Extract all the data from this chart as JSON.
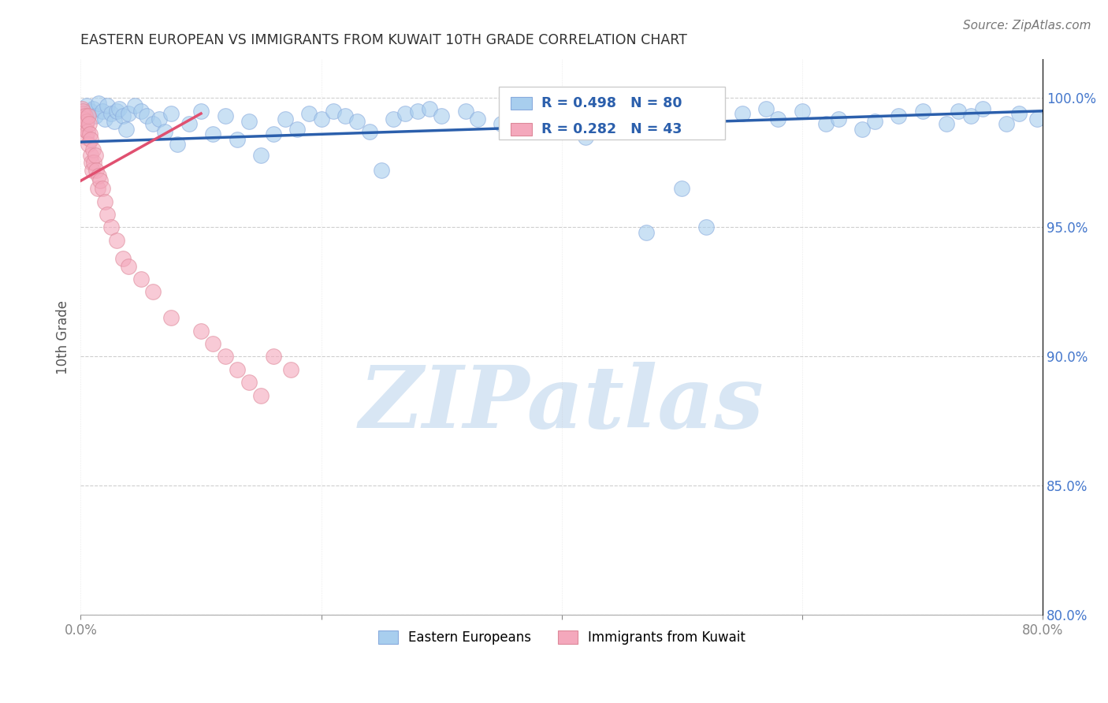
{
  "title": "EASTERN EUROPEAN VS IMMIGRANTS FROM KUWAIT 10TH GRADE CORRELATION CHART",
  "source": "Source: ZipAtlas.com",
  "xlabel": "",
  "ylabel": "10th Grade",
  "watermark_text": "ZIPatlas",
  "legend_blue_label": "Eastern Europeans",
  "legend_pink_label": "Immigrants from Kuwait",
  "R_blue": 0.498,
  "N_blue": 80,
  "R_pink": 0.282,
  "N_pink": 43,
  "xlim": [
    0.0,
    80.0
  ],
  "ylim": [
    80.0,
    101.5
  ],
  "x_ticks": [
    0.0,
    20.0,
    40.0,
    60.0,
    80.0
  ],
  "y_ticks": [
    80.0,
    85.0,
    90.0,
    95.0,
    100.0
  ],
  "x_tick_labels": [
    "0.0%",
    "",
    "",
    "",
    "80.0%"
  ],
  "y_tick_labels": [
    "80.0%",
    "85.0%",
    "90.0%",
    "95.0%",
    "100.0%"
  ],
  "blue_color": "#A8CEEE",
  "pink_color": "#F4A8BC",
  "line_blue_color": "#2B5FAC",
  "line_pink_color": "#E05070",
  "background_color": "#FFFFFF",
  "grid_color": "#BBBBBB",
  "title_color": "#333333",
  "axis_label_color": "#555555",
  "tick_color": "#888888",
  "right_tick_color": "#4477CC",
  "watermark_color": "#D8E6F4",
  "blue_line_x0": 0.0,
  "blue_line_y0": 98.3,
  "blue_line_x1": 80.0,
  "blue_line_y1": 99.5,
  "pink_line_x0": 0.0,
  "pink_line_y0": 96.8,
  "pink_line_x1": 10.0,
  "pink_line_y1": 99.4,
  "blue_points_x": [
    0.3,
    0.5,
    0.8,
    1.0,
    1.2,
    1.5,
    1.8,
    2.0,
    2.2,
    2.5,
    2.8,
    3.0,
    3.2,
    3.5,
    3.8,
    4.0,
    4.5,
    5.0,
    5.5,
    6.0,
    6.5,
    7.0,
    7.5,
    8.0,
    9.0,
    10.0,
    11.0,
    12.0,
    13.0,
    14.0,
    15.0,
    16.0,
    17.0,
    18.0,
    19.0,
    20.0,
    21.0,
    22.0,
    23.0,
    24.0,
    25.0,
    26.0,
    27.0,
    28.0,
    29.0,
    30.0,
    32.0,
    33.0,
    35.0,
    36.0,
    37.0,
    38.0,
    39.0,
    40.0,
    41.0,
    42.0,
    43.0,
    44.0,
    45.0,
    47.0,
    48.0,
    50.0,
    52.0,
    55.0,
    57.0,
    58.0,
    60.0,
    62.0,
    63.0,
    65.0,
    66.0,
    68.0,
    70.0,
    72.0,
    73.0,
    74.0,
    75.0,
    77.0,
    78.0,
    79.5
  ],
  "blue_points_y": [
    99.4,
    99.7,
    99.5,
    99.6,
    99.3,
    99.8,
    99.5,
    99.2,
    99.7,
    99.4,
    99.1,
    99.5,
    99.6,
    99.3,
    98.8,
    99.4,
    99.7,
    99.5,
    99.3,
    99.0,
    99.2,
    98.7,
    99.4,
    98.2,
    99.0,
    99.5,
    98.6,
    99.3,
    98.4,
    99.1,
    97.8,
    98.6,
    99.2,
    98.8,
    99.4,
    99.2,
    99.5,
    99.3,
    99.1,
    98.7,
    97.2,
    99.2,
    99.4,
    99.5,
    99.6,
    99.3,
    99.5,
    99.2,
    99.0,
    98.7,
    99.5,
    99.6,
    99.4,
    99.2,
    99.3,
    98.5,
    99.0,
    99.3,
    99.5,
    94.8,
    99.0,
    96.5,
    95.0,
    99.4,
    99.6,
    99.2,
    99.5,
    99.0,
    99.2,
    98.8,
    99.1,
    99.3,
    99.5,
    99.0,
    99.5,
    99.3,
    99.6,
    99.0,
    99.4,
    99.2
  ],
  "pink_points_x": [
    0.1,
    0.15,
    0.2,
    0.25,
    0.3,
    0.35,
    0.4,
    0.45,
    0.5,
    0.55,
    0.6,
    0.65,
    0.7,
    0.75,
    0.8,
    0.85,
    0.9,
    0.95,
    1.0,
    1.1,
    1.2,
    1.3,
    1.4,
    1.5,
    1.6,
    1.8,
    2.0,
    2.2,
    2.5,
    3.0,
    3.5,
    4.0,
    5.0,
    6.0,
    7.5,
    10.0,
    11.0,
    12.0,
    13.0,
    14.0,
    15.0,
    16.0,
    17.5
  ],
  "pink_points_y": [
    99.6,
    99.4,
    99.5,
    99.2,
    98.8,
    99.3,
    99.0,
    98.5,
    99.1,
    98.7,
    99.3,
    98.2,
    99.0,
    98.6,
    97.8,
    98.4,
    97.5,
    97.2,
    98.0,
    97.5,
    97.8,
    97.2,
    96.5,
    97.0,
    96.8,
    96.5,
    96.0,
    95.5,
    95.0,
    94.5,
    93.8,
    93.5,
    93.0,
    92.5,
    91.5,
    91.0,
    90.5,
    90.0,
    89.5,
    89.0,
    88.5,
    90.0,
    89.5
  ]
}
